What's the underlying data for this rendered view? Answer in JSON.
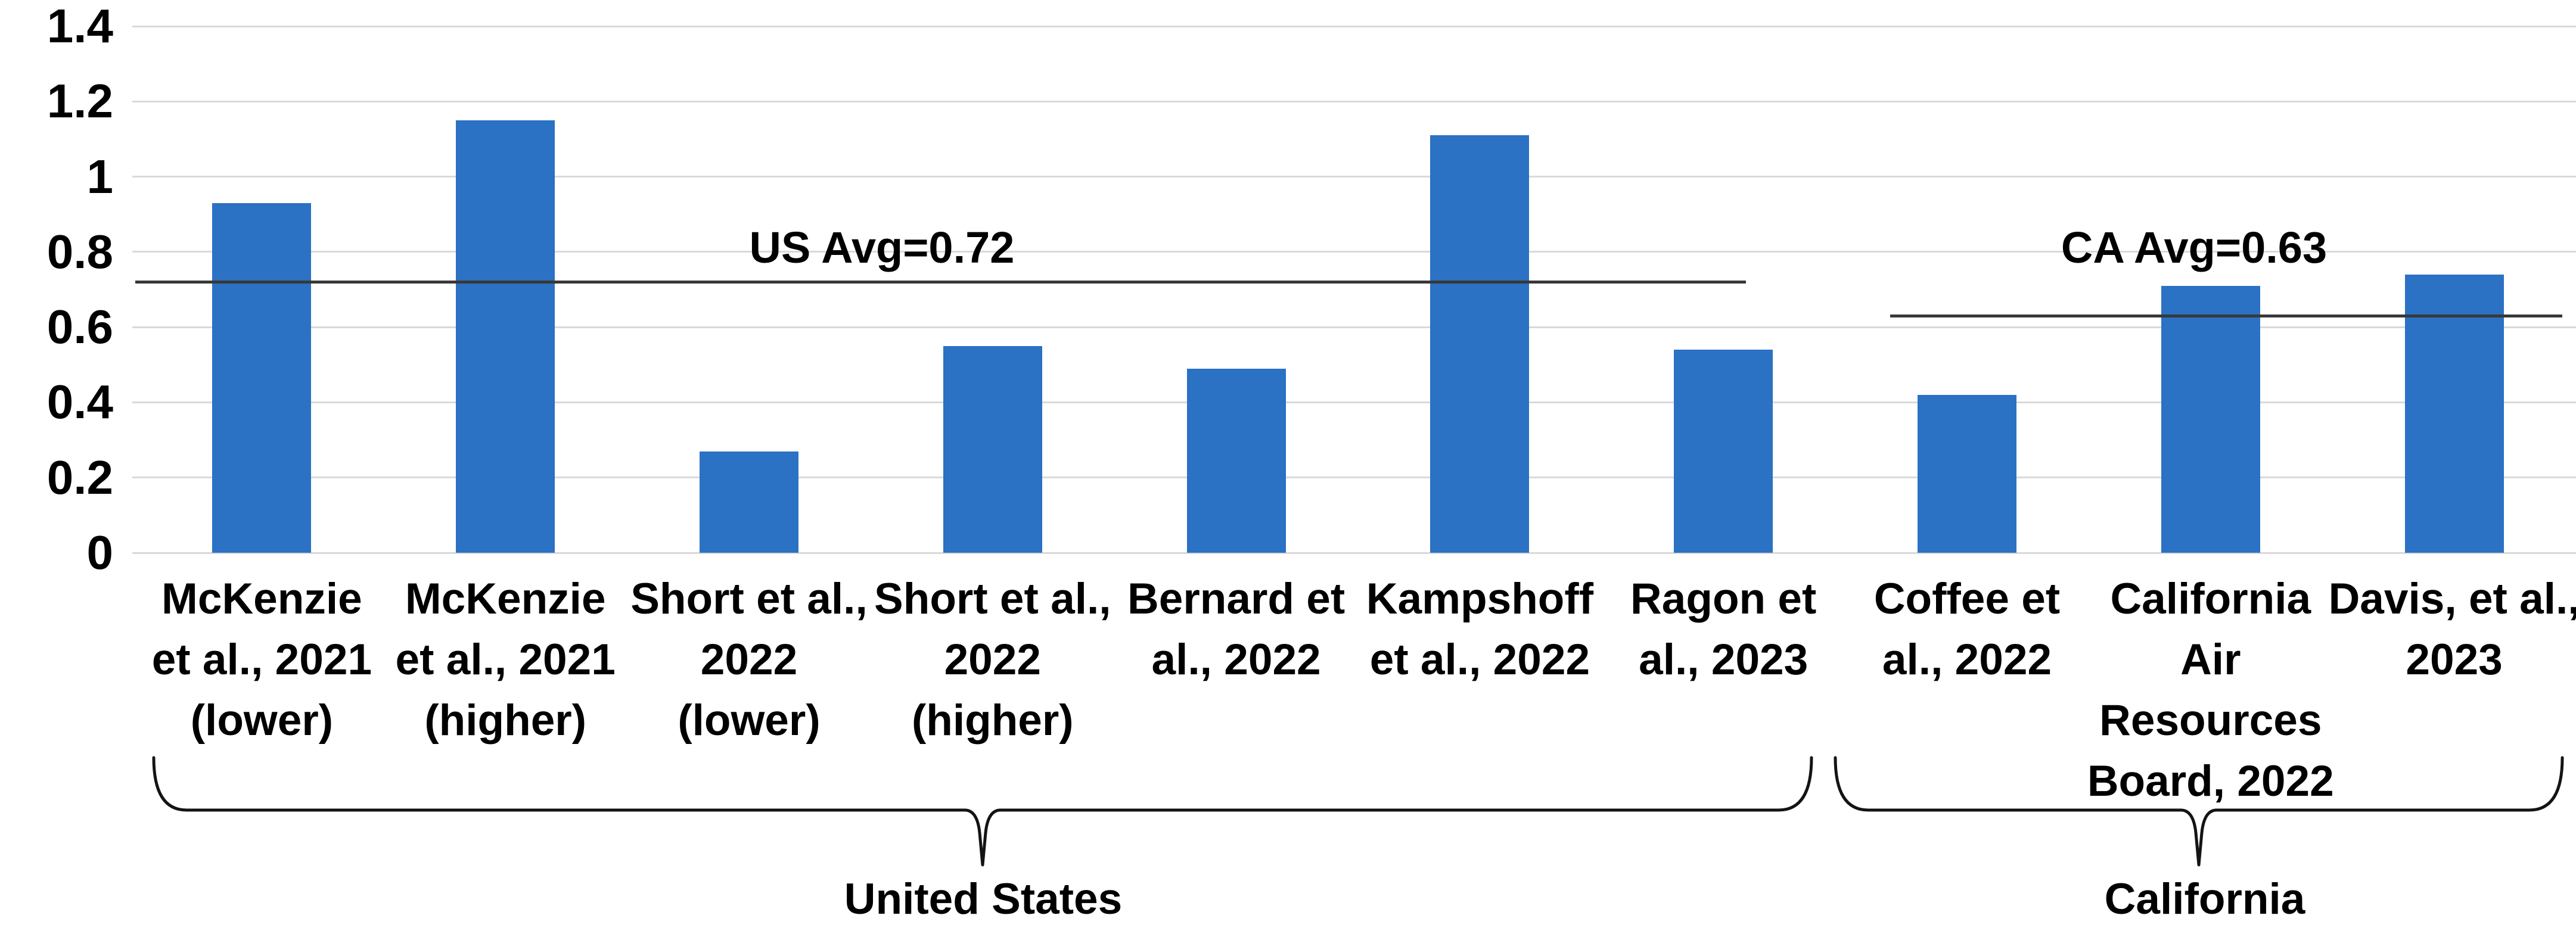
{
  "chart_data": {
    "type": "bar",
    "title": "",
    "xlabel": "",
    "ylabel": "",
    "ylim": [
      0,
      1.4
    ],
    "yticks": [
      0,
      0.2,
      0.4,
      0.6,
      0.8,
      1,
      1.2,
      1.4
    ],
    "ytick_labels": [
      "0",
      "0.2",
      "0.4",
      "0.6",
      "0.8",
      "1",
      "1.2",
      "1.4"
    ],
    "grid": "horizontal",
    "legend_position": "none",
    "categories": [
      "McKenzie et al., 2021 (lower)",
      "McKenzie et al., 2021 (higher)",
      "Short et al., 2022 (lower)",
      "Short et al., 2022 (higher)",
      "Bernard et al., 2022",
      "Kampshoff et al., 2022",
      "Ragon et al., 2023",
      "Coffee et al., 2022",
      "California Air Resources Board, 2022",
      "Davis, et al., 2023"
    ],
    "category_lines": [
      [
        "McKenzie",
        "et al., 2021",
        "(lower)"
      ],
      [
        "McKenzie",
        "et al., 2021",
        "(higher)"
      ],
      [
        "Short et al.,",
        "2022",
        "(lower)"
      ],
      [
        "Short et al.,",
        "2022",
        "(higher)"
      ],
      [
        "Bernard et",
        "al., 2022"
      ],
      [
        "Kampshoff",
        "et al., 2022"
      ],
      [
        "Ragon et",
        "al., 2023"
      ],
      [
        "Coffee et",
        "al., 2022"
      ],
      [
        "California",
        "Air",
        "Resources",
        "Board, 2022"
      ],
      [
        "Davis, et al.,",
        "2023"
      ]
    ],
    "values": [
      0.93,
      1.15,
      0.27,
      0.55,
      0.49,
      1.11,
      0.54,
      0.42,
      0.71,
      0.74
    ],
    "groups": [
      {
        "name": "United States",
        "from_index": 0,
        "to_index": 6,
        "avg_label": "US Avg=0.72",
        "avg_value": 0.72
      },
      {
        "name": "California",
        "from_index": 7,
        "to_index": 9,
        "avg_label": "CA Avg=0.63",
        "avg_value": 0.63
      }
    ],
    "colors": {
      "bar": "#2B71C4",
      "gridline": "#D9D9D9",
      "avg_line": "#383838",
      "brace": "#141414",
      "text": "#000000"
    }
  }
}
